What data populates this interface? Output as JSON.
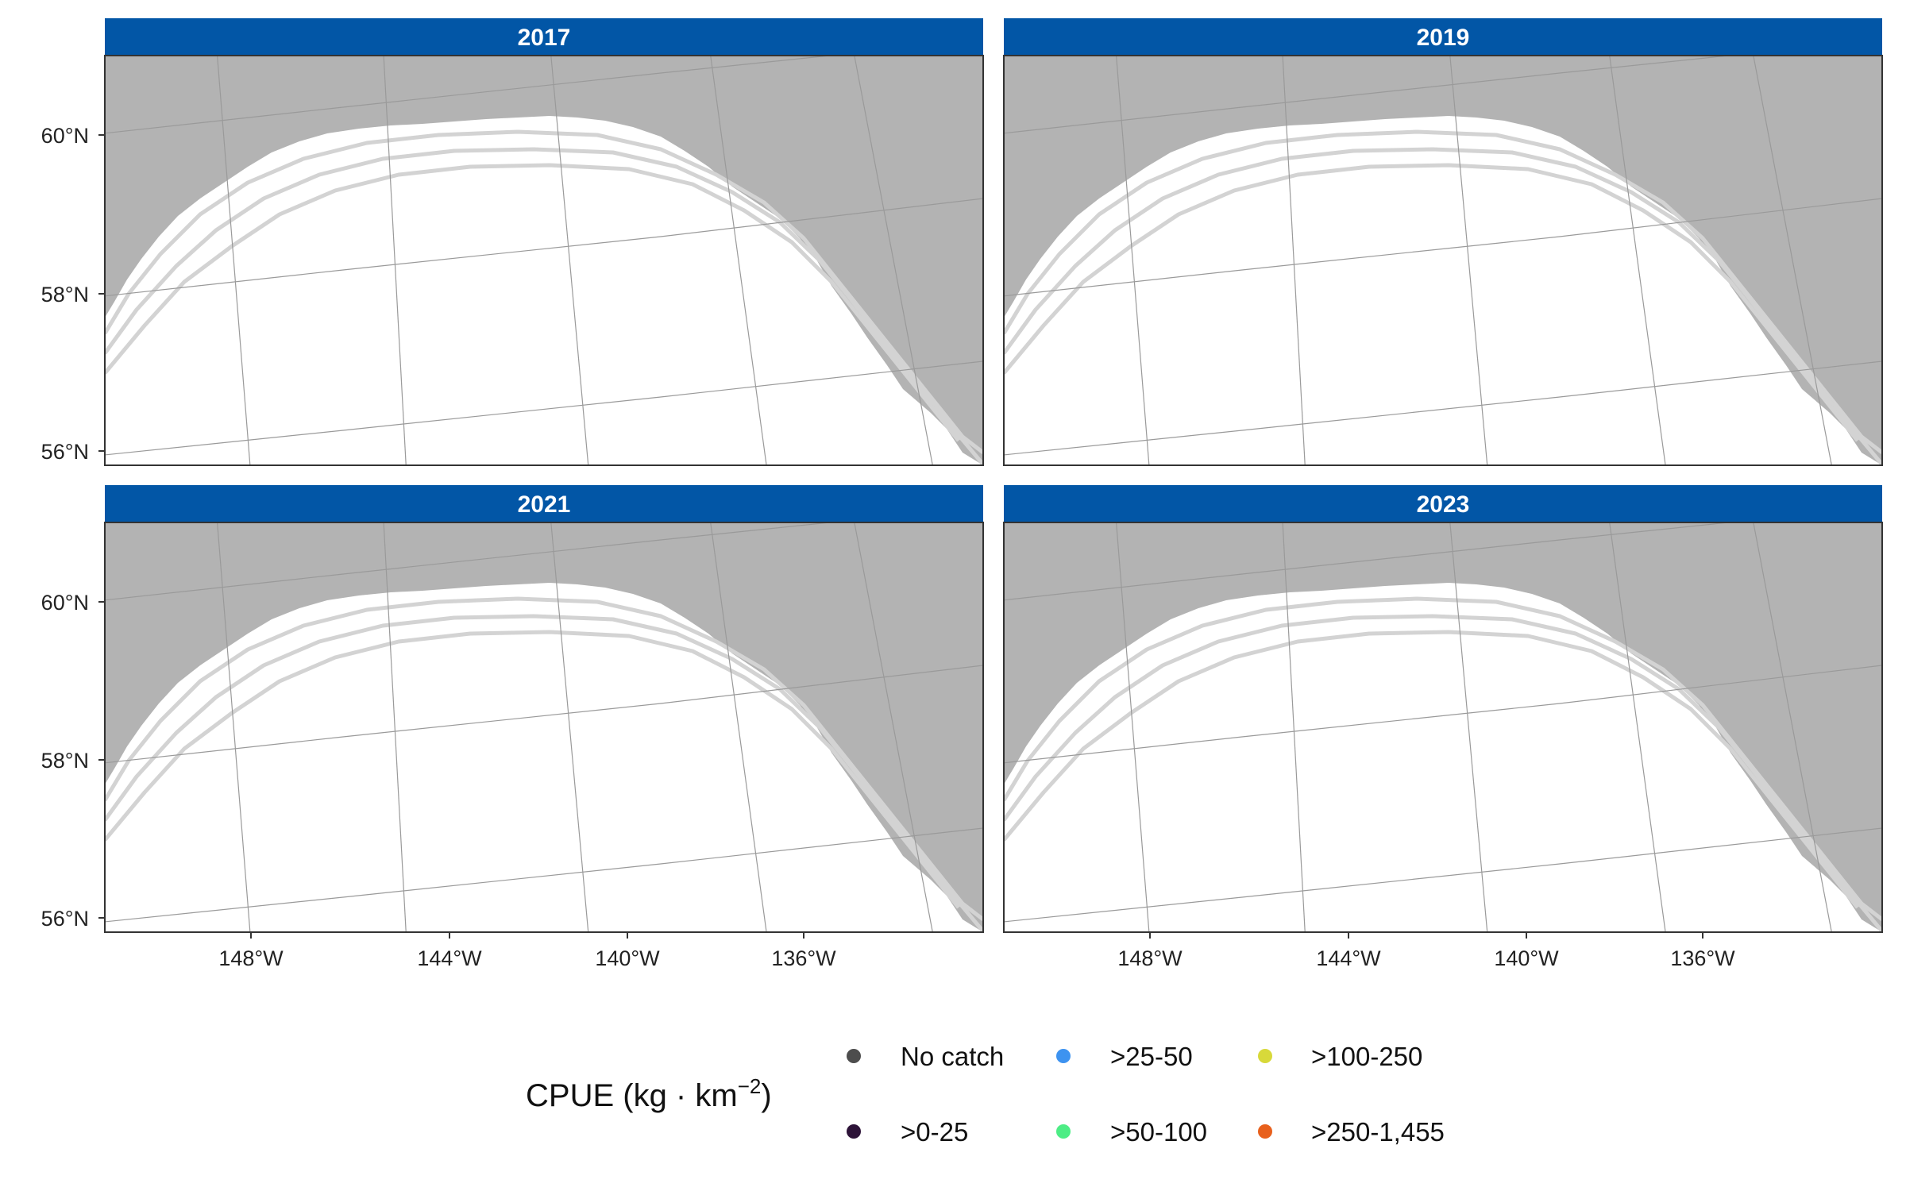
{
  "map": {
    "panels": [
      {
        "label": "2017"
      },
      {
        "label": "2019"
      },
      {
        "label": "2021"
      },
      {
        "label": "2023"
      }
    ],
    "y_ticks": [
      "60°N",
      "58°N",
      "56°N"
    ],
    "x_ticks": [
      "148°W",
      "144°W",
      "140°W",
      "136°W"
    ]
  },
  "legend": {
    "title_main": "CPUE (kg · km",
    "title_sup": "−2",
    "title_close": ")",
    "items": [
      {
        "label": "No catch",
        "color": "#4d4d4d"
      },
      {
        "label": ">0-25",
        "color": "#2d1338"
      },
      {
        "label": ">25-50",
        "color": "#3d93f0"
      },
      {
        "label": ">50-100",
        "color": "#4ded85"
      },
      {
        "label": ">100-250",
        "color": "#d8d93a"
      },
      {
        "label": ">250-1,455",
        "color": "#e8601c"
      }
    ]
  },
  "colors": {
    "strip": "#0256a6",
    "land": "#b3b3b3",
    "ocean": "#ffffff",
    "contour": "#d3d3d3",
    "graticule": "#9a9a9a",
    "no_catch_marker": "#4d4d4d"
  }
}
